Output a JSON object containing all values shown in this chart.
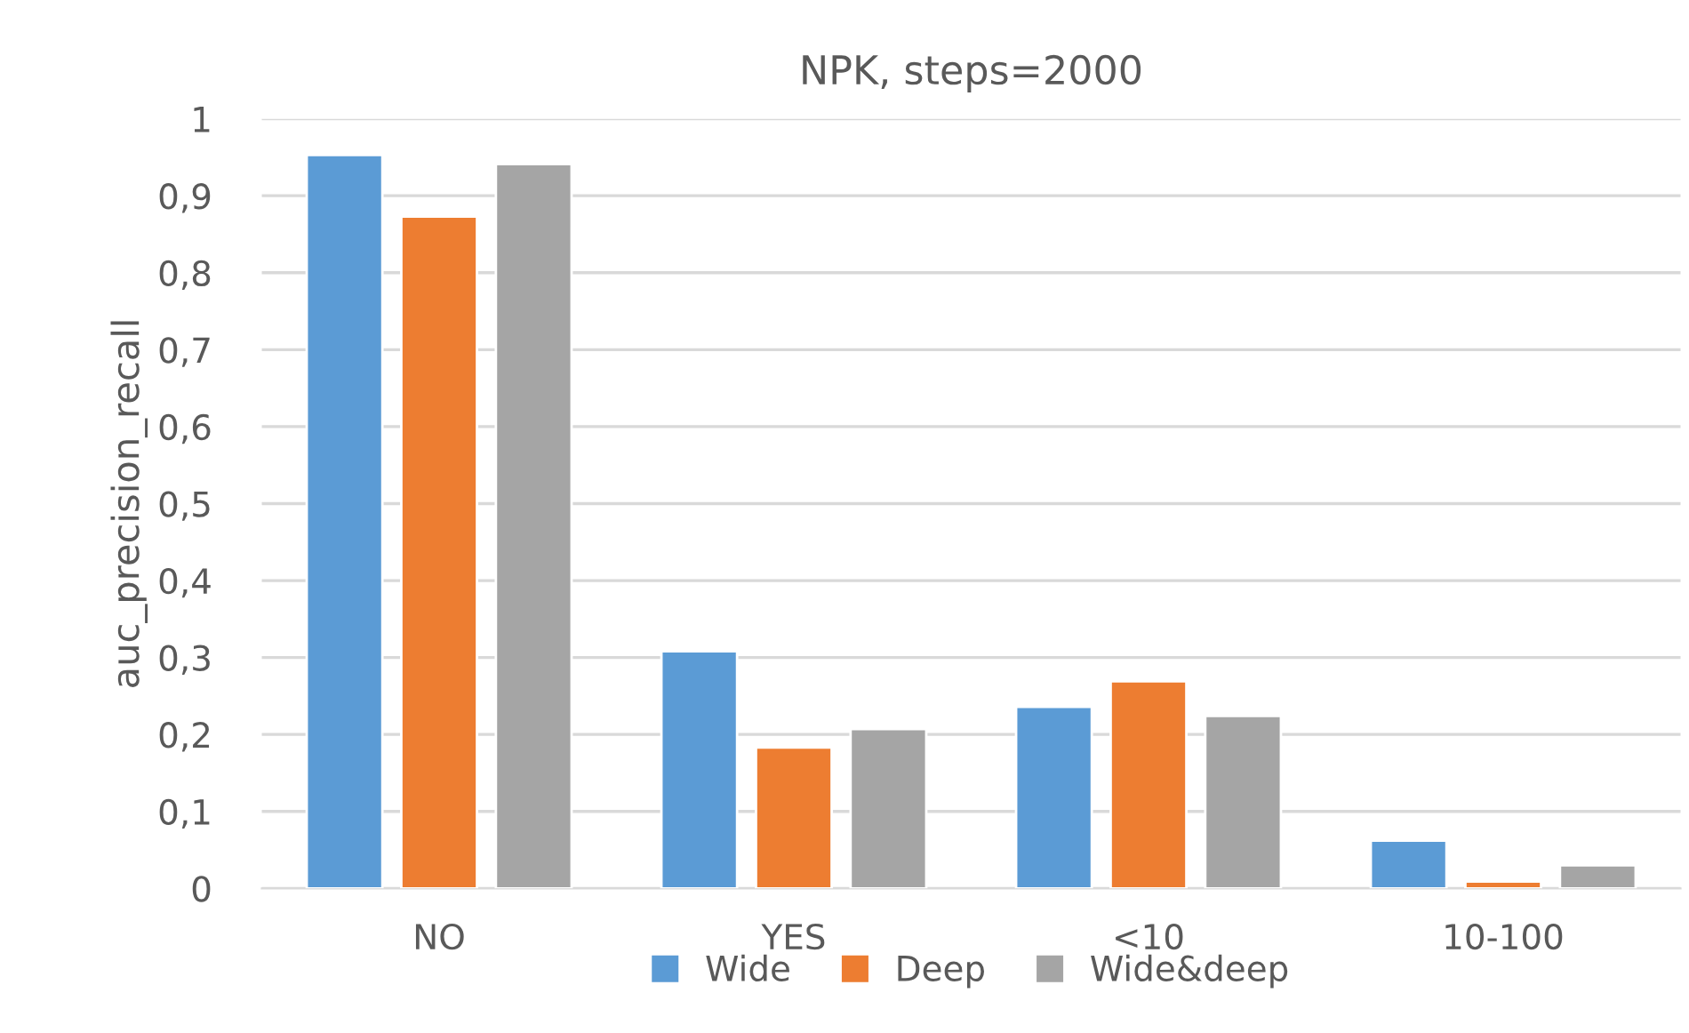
{
  "chart_data": {
    "type": "bar",
    "title": "NPK, steps=2000",
    "ylabel": "auc_precision_recall",
    "categories": [
      "NO",
      "YES",
      "<10",
      "10-100"
    ],
    "series": [
      {
        "name": "Wide",
        "color": "#5b9bd5",
        "values": [
          0.953,
          0.308,
          0.236,
          0.062
        ]
      },
      {
        "name": "Deep",
        "color": "#ed7d31",
        "values": [
          0.873,
          0.183,
          0.269,
          0.009
        ]
      },
      {
        "name": "Wide&deep",
        "color": "#a5a5a5",
        "values": [
          0.941,
          0.207,
          0.224,
          0.03
        ]
      }
    ],
    "ylim": [
      0,
      1
    ],
    "yticks": [
      0,
      {
        "value": 0.1,
        "label": "0,1"
      },
      {
        "value": 0.2,
        "label": "0,2"
      },
      {
        "value": 0.3,
        "label": "0,3"
      },
      {
        "value": 0.4,
        "label": "0,4"
      },
      {
        "value": 0.5,
        "label": "0,5"
      },
      {
        "value": 0.6,
        "label": "0,6"
      },
      {
        "value": 0.7,
        "label": "0,7"
      },
      {
        "value": 0.8,
        "label": "0,8"
      },
      {
        "value": 0.9,
        "label": "0,9"
      },
      1
    ],
    "grid": "y",
    "legend": "bottom"
  }
}
